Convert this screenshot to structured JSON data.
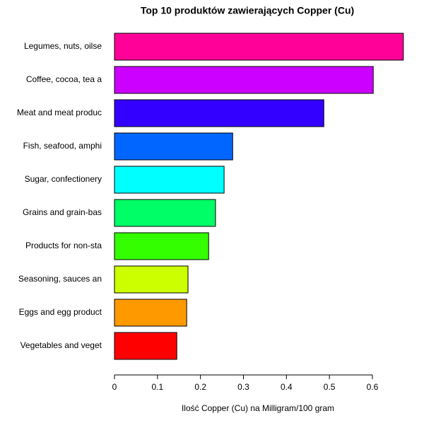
{
  "chart_data": {
    "type": "barh",
    "title": "Top 10 produktów zawierających Copper (Cu)",
    "x_label": "Ilość Copper (Cu) na Milligram/100 gram",
    "categories": [
      "Legumes, nuts, oilse",
      "Coffee, cocoa, tea a",
      "Meat and meat produc",
      "Fish, seafood, amphi",
      "Sugar, confectionery",
      "Grains and grain-bas",
      "Products for non-sta",
      "Seasoning, sauces an",
      "Eggs and egg product",
      "Vegetables and veget"
    ],
    "values": [
      0.672,
      0.602,
      0.487,
      0.275,
      0.255,
      0.235,
      0.219,
      0.171,
      0.168,
      0.145
    ],
    "colors": [
      "#FF0099",
      "#CC00FF",
      "#3300FF",
      "#0066FF",
      "#00FFFF",
      "#00FF66",
      "#33FF00",
      "#CCFF00",
      "#FF9900",
      "#FF0000"
    ],
    "xlim": [
      0,
      0.7
    ],
    "xticks": [
      0,
      0.1,
      0.2,
      0.3,
      0.4,
      0.5,
      0.6
    ]
  }
}
